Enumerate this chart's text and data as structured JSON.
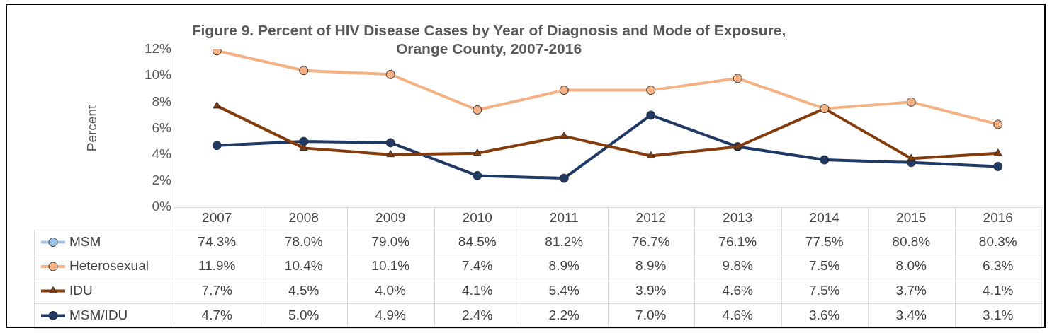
{
  "chart_data": {
    "type": "line",
    "title": "Figure 9. Percent of HIV Disease Cases by Year of Diagnosis and Mode of Exposure, Orange County, 2007-2016",
    "ylabel": "Percent",
    "categories": [
      "2007",
      "2008",
      "2009",
      "2010",
      "2011",
      "2012",
      "2013",
      "2014",
      "2015",
      "2016"
    ],
    "ylim": [
      0,
      12
    ],
    "yticks": [
      {
        "value": 0,
        "label": "0%"
      },
      {
        "value": 2,
        "label": "2%"
      },
      {
        "value": 4,
        "label": "4%"
      },
      {
        "value": 6,
        "label": "6%"
      },
      {
        "value": 8,
        "label": "8%"
      },
      {
        "value": 10,
        "label": "10%"
      },
      {
        "value": 12,
        "label": "12%"
      }
    ],
    "grid": false,
    "legend": "bottom",
    "line_style": "solid",
    "series": [
      {
        "name": "MSM",
        "color": "#9dc3e6",
        "marker": "circle",
        "values": [
          null,
          null,
          null,
          null,
          null,
          null,
          null,
          null,
          null,
          null
        ],
        "value_labels": [
          "74.3%",
          "78.0%",
          "79.0%",
          "84.5%",
          "81.2%",
          "76.7%",
          "76.1%",
          "77.5%",
          "80.8%",
          "80.3%"
        ]
      },
      {
        "name": "Heterosexual",
        "color": "#f4b183",
        "marker": "circle",
        "values": [
          11.9,
          10.4,
          10.1,
          7.4,
          8.9,
          8.9,
          9.8,
          7.5,
          8.0,
          6.3
        ],
        "value_labels": [
          "11.9%",
          "10.4%",
          "10.1%",
          "7.4%",
          "8.9%",
          "8.9%",
          "9.8%",
          "7.5%",
          "8.0%",
          "6.3%"
        ]
      },
      {
        "name": "IDU",
        "color": "#843c0c",
        "marker": "triangle",
        "values": [
          7.7,
          4.5,
          4.0,
          4.1,
          5.4,
          3.9,
          4.6,
          7.5,
          3.7,
          4.1
        ],
        "value_labels": [
          "7.7%",
          "4.5%",
          "4.0%",
          "4.1%",
          "5.4%",
          "3.9%",
          "4.6%",
          "7.5%",
          "3.7%",
          "4.1%"
        ]
      },
      {
        "name": "MSM/IDU",
        "color": "#1f3864",
        "marker": "circle",
        "values": [
          4.7,
          5.0,
          4.9,
          2.4,
          2.2,
          7.0,
          4.6,
          3.6,
          3.4,
          3.1
        ],
        "value_labels": [
          "4.7%",
          "5.0%",
          "4.9%",
          "2.4%",
          "2.2%",
          "7.0%",
          "4.6%",
          "3.6%",
          "3.4%",
          "3.1%"
        ]
      }
    ]
  }
}
